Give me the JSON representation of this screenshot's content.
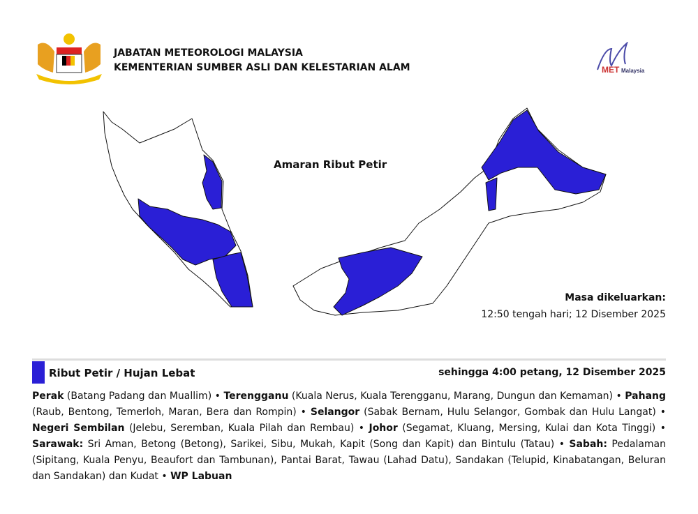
{
  "header": {
    "org_line1": "JABATAN METEOROLOGI MALAYSIA",
    "org_line2": "KEMENTERIAN SUMBER ASLI DAN KELESTARIAN ALAM",
    "logo_text": "METMalaysia"
  },
  "map": {
    "title": "Amaran Ribut Petir",
    "warning_color": "#2a1fd6",
    "issued_label": "Masa dikeluarkan:",
    "issued_value": "12:50 tengah hari; 12 Disember 2025"
  },
  "warning": {
    "title": "Ribut Petir / Hujan Lebat",
    "valid_until": "sehingga 4:00 petang, 12 Disember 2025",
    "entries": [
      {
        "state": "Perak",
        "areas": " (Batang Padang dan Muallim) "
      },
      {
        "state": "Terengganu",
        "areas": " (Kuala Nerus, Kuala Terengganu, Marang, Dungun dan Kemaman) "
      },
      {
        "state": "Pahang",
        "areas": " (Raub, Bentong, Temerloh, Maran, Bera dan Rompin) "
      },
      {
        "state": "Selangor",
        "areas": " (Sabak Bernam, Hulu Selangor, Gombak dan Hulu Langat) "
      },
      {
        "state": "Negeri Sembilan",
        "areas": " (Jelebu, Seremban, Kuala Pilah dan Rembau) "
      },
      {
        "state": "Johor",
        "areas": " (Segamat, Kluang, Mersing, Kulai dan Kota Tinggi) "
      },
      {
        "state": "Sarawak:",
        "areas": " Sri Aman, Betong (Betong), Sarikei, Sibu, Mukah, Kapit (Song dan Kapit) dan Bintulu (Tatau) "
      },
      {
        "state": "Sabah:",
        "areas": " Pedalaman (Sipitang, Kuala Penyu, Beaufort dan Tambunan), Pantai Barat, Tawau (Lahad Datu), Sandakan (Telupid, Kinabatangan, Beluran dan Sandakan) dan Kudat "
      },
      {
        "state": "WP Labuan",
        "areas": ""
      }
    ],
    "separator": "•"
  }
}
